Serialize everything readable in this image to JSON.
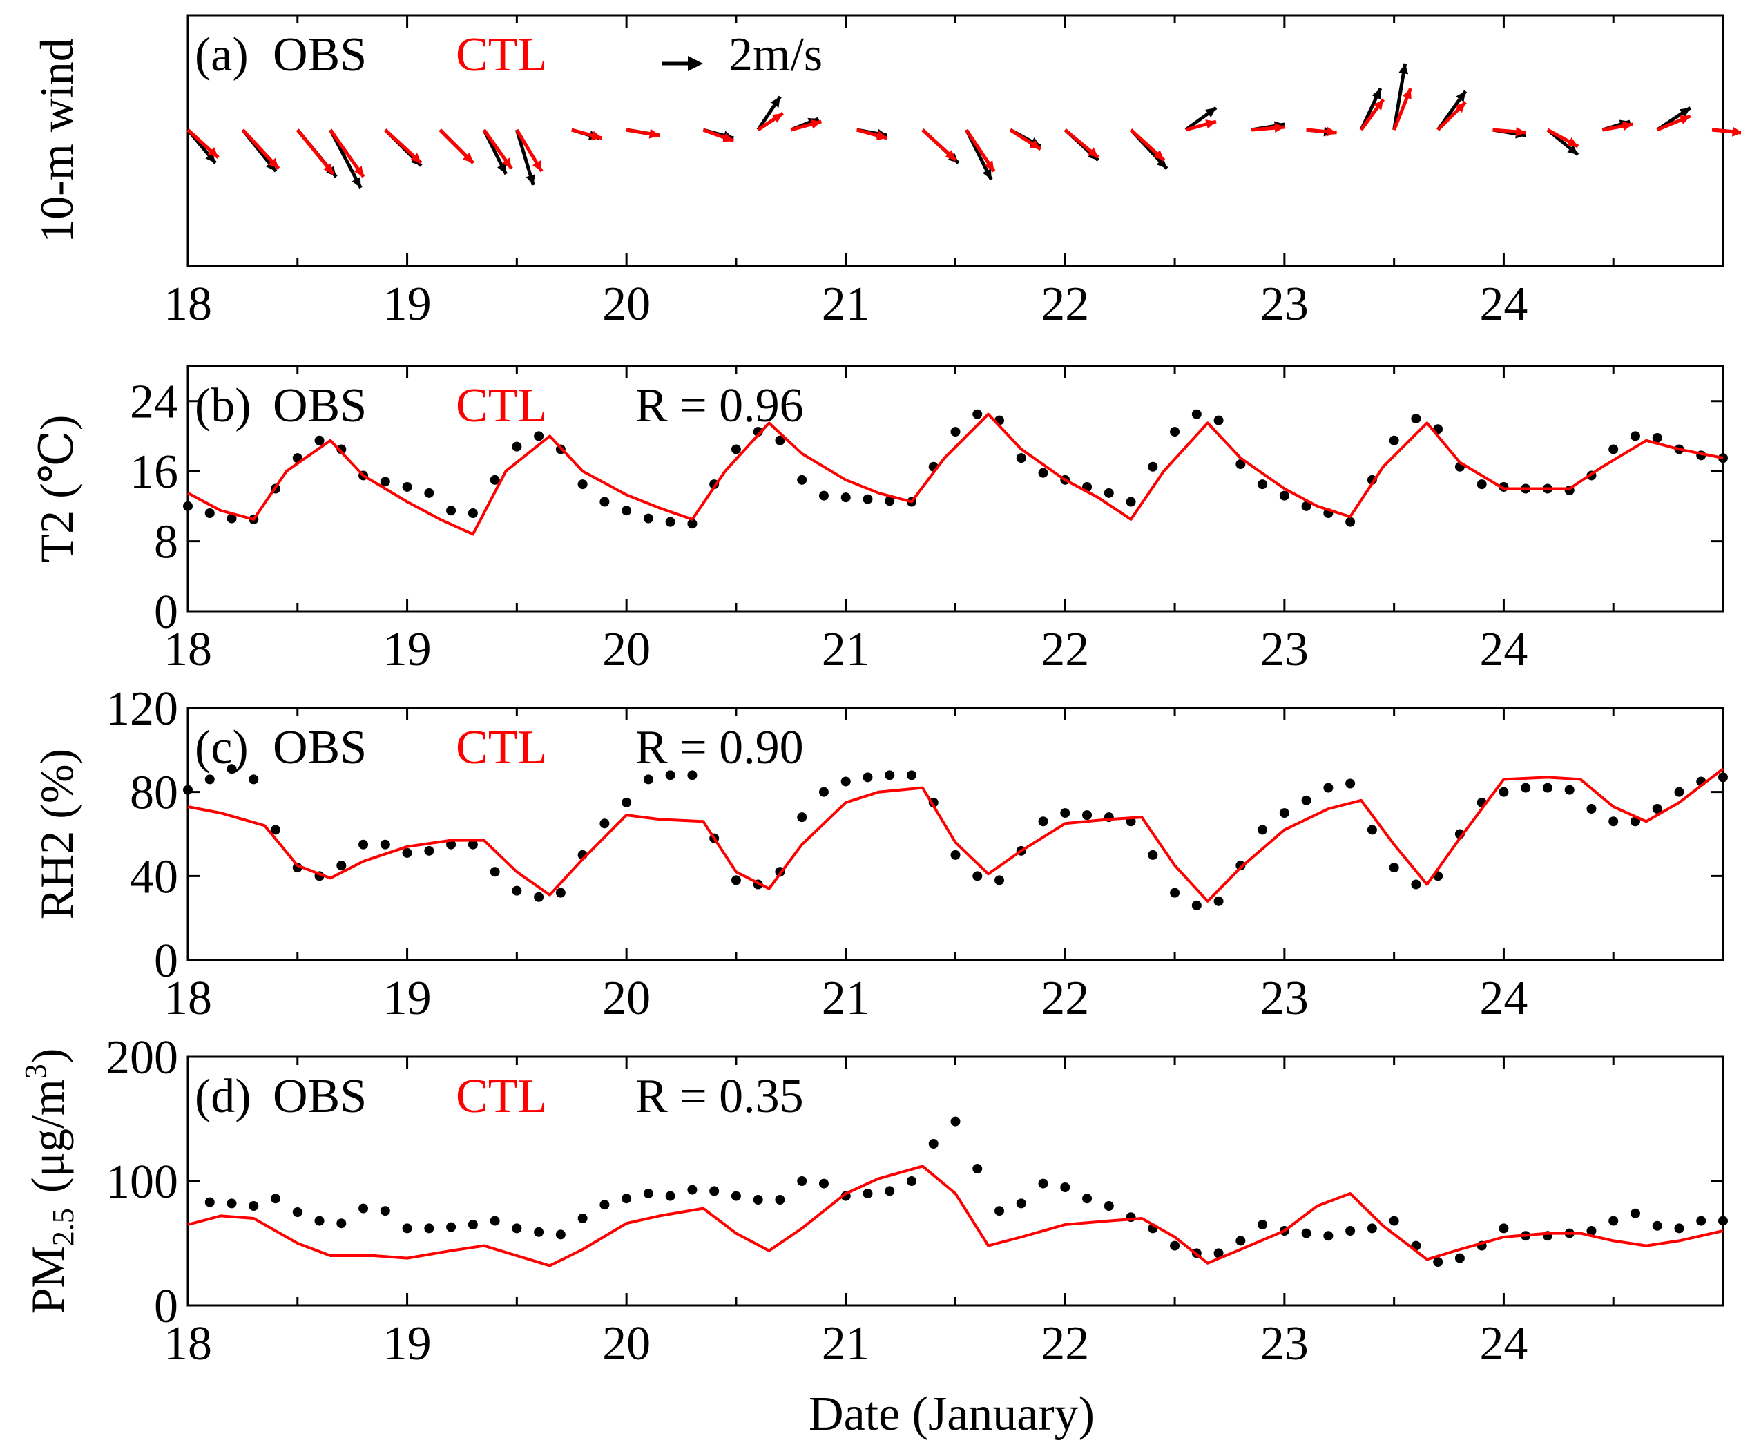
{
  "colors": {
    "obs": "#000000",
    "ctl": "#ff0000"
  },
  "legend": {
    "obs": "OBS",
    "ctl": "CTL"
  },
  "xaxis": {
    "label": "Date (January)",
    "range": [
      18,
      25
    ],
    "ticks": [
      "18",
      "19",
      "20",
      "21",
      "22",
      "23",
      "24"
    ]
  },
  "chart_data": [
    {
      "type": "quiver",
      "panel": "(a)",
      "ylabel": "10-m wind",
      "reference_arrow": "2m/s",
      "xlim": [
        18,
        25
      ],
      "obs": {
        "t": [
          18.0,
          18.25,
          18.5,
          18.65,
          18.9,
          19.15,
          19.35,
          19.5,
          19.75,
          20.0,
          20.35,
          20.6,
          20.75,
          21.05,
          21.35,
          21.55,
          21.75,
          22.0,
          22.3,
          22.55,
          22.85,
          23.1,
          23.35,
          23.5,
          23.7,
          23.95,
          24.2,
          24.45,
          24.7,
          24.95
        ],
        "u": [
          1.0,
          1.2,
          1.4,
          1.1,
          1.3,
          1.2,
          0.8,
          0.6,
          1.0,
          1.2,
          1.1,
          0.8,
          1.0,
          1.1,
          1.3,
          0.9,
          1.1,
          1.2,
          1.3,
          1.1,
          1.2,
          1.0,
          0.7,
          0.4,
          1.0,
          1.2,
          1.1,
          1.0,
          1.2,
          1.1
        ],
        "v": [
          1.2,
          1.5,
          1.7,
          2.1,
          1.3,
          1.2,
          1.6,
          2.0,
          0.3,
          0.2,
          0.3,
          -1.2,
          -0.4,
          0.2,
          1.2,
          1.8,
          0.6,
          1.1,
          1.4,
          -0.8,
          -0.2,
          0.1,
          -1.5,
          -2.4,
          -1.4,
          0.2,
          0.9,
          -0.3,
          -0.8,
          0.1
        ]
      },
      "ctl": {
        "t": [
          18.0,
          18.25,
          18.5,
          18.65,
          18.9,
          19.15,
          19.35,
          19.5,
          19.75,
          20.0,
          20.35,
          20.6,
          20.75,
          21.05,
          21.35,
          21.55,
          21.75,
          22.0,
          22.3,
          22.55,
          22.85,
          23.1,
          23.35,
          23.5,
          23.7,
          23.95,
          24.2,
          24.45,
          24.7,
          24.95
        ],
        "u": [
          1.1,
          1.3,
          1.3,
          1.2,
          1.3,
          1.2,
          1.0,
          0.9,
          1.1,
          1.2,
          1.1,
          0.9,
          1.1,
          1.1,
          1.2,
          1.0,
          1.1,
          1.2,
          1.2,
          1.1,
          1.2,
          1.1,
          0.8,
          0.6,
          1.0,
          1.2,
          1.1,
          1.1,
          1.2,
          1.1
        ],
        "v": [
          1.0,
          1.4,
          1.6,
          1.7,
          1.2,
          1.2,
          1.4,
          1.5,
          0.3,
          0.2,
          0.4,
          -0.6,
          -0.3,
          0.3,
          1.1,
          1.5,
          0.7,
          1.0,
          1.1,
          -0.3,
          -0.1,
          0.1,
          -1.1,
          -1.5,
          -1.0,
          0.1,
          0.6,
          -0.2,
          -0.5,
          0.1
        ]
      }
    },
    {
      "type": "line_scatter",
      "panel": "(b)",
      "ylabel": "T2 (℃)",
      "r_text": "R = 0.96",
      "ylim": [
        0,
        28
      ],
      "yticks": [
        0,
        8,
        16,
        24
      ],
      "obs": {
        "t": [
          18.0,
          18.1,
          18.2,
          18.3,
          18.4,
          18.5,
          18.6,
          18.7,
          18.8,
          18.9,
          19.0,
          19.1,
          19.2,
          19.3,
          19.4,
          19.5,
          19.6,
          19.7,
          19.8,
          19.9,
          20.0,
          20.1,
          20.2,
          20.3,
          20.4,
          20.5,
          20.6,
          20.7,
          20.8,
          20.9,
          21.0,
          21.1,
          21.2,
          21.3,
          21.4,
          21.5,
          21.6,
          21.7,
          21.8,
          21.9,
          22.0,
          22.1,
          22.2,
          22.3,
          22.4,
          22.5,
          22.6,
          22.7,
          22.8,
          22.9,
          23.0,
          23.1,
          23.2,
          23.3,
          23.4,
          23.5,
          23.6,
          23.7,
          23.8,
          23.9,
          24.0,
          24.1,
          24.2,
          24.3,
          24.4,
          24.5,
          24.6,
          24.7,
          24.8,
          24.9,
          25.0
        ],
        "y": [
          12,
          11.2,
          10.6,
          10.5,
          14,
          17.5,
          19.5,
          18.5,
          15.5,
          14.8,
          14.2,
          13.5,
          11.5,
          11.2,
          15,
          18.8,
          20,
          18.5,
          14.5,
          12.5,
          11.5,
          10.6,
          10.2,
          10,
          14.5,
          18.5,
          20.5,
          19.5,
          15,
          13.2,
          13,
          12.8,
          12.6,
          12.5,
          16.5,
          20.5,
          22.5,
          21.8,
          17.5,
          15.8,
          15,
          14.2,
          13.5,
          12.5,
          16.5,
          20.5,
          22.5,
          21.8,
          16.8,
          14.5,
          13.2,
          12,
          11.2,
          10.2,
          15,
          19.5,
          22,
          20.8,
          16.5,
          14.5,
          14.2,
          14,
          14,
          13.8,
          15.5,
          18.5,
          20,
          19.8,
          18.5,
          17.8,
          17.5
        ]
      },
      "ctl": {
        "t": [
          18.0,
          18.15,
          18.3,
          18.45,
          18.65,
          18.8,
          19.0,
          19.15,
          19.3,
          19.45,
          19.65,
          19.8,
          20.0,
          20.15,
          20.3,
          20.45,
          20.65,
          20.8,
          21.0,
          21.15,
          21.3,
          21.45,
          21.65,
          21.8,
          22.0,
          22.15,
          22.3,
          22.45,
          22.65,
          22.8,
          23.0,
          23.15,
          23.3,
          23.45,
          23.65,
          23.8,
          24.0,
          24.15,
          24.3,
          24.45,
          24.65,
          24.8,
          25.0
        ],
        "y": [
          13.5,
          11.5,
          10.5,
          16,
          19.5,
          15.5,
          12.5,
          10.5,
          8.8,
          16,
          20,
          16,
          13.3,
          11.8,
          10.5,
          16,
          21.5,
          18,
          15,
          13.5,
          12.5,
          17.5,
          22.5,
          18.5,
          15,
          13,
          10.5,
          16,
          21.5,
          17.5,
          14,
          12,
          10.8,
          16.5,
          21.5,
          17,
          14,
          14,
          14,
          16.5,
          19.5,
          18.5,
          17.5
        ]
      }
    },
    {
      "type": "line_scatter",
      "panel": "(c)",
      "ylabel": "RH2 (%)",
      "r_text": "R = 0.90",
      "ylim": [
        0,
        120
      ],
      "yticks": [
        0,
        40,
        80,
        120
      ],
      "obs": {
        "t": [
          18.0,
          18.1,
          18.2,
          18.3,
          18.4,
          18.5,
          18.6,
          18.7,
          18.8,
          18.9,
          19.0,
          19.1,
          19.2,
          19.3,
          19.4,
          19.5,
          19.6,
          19.7,
          19.8,
          19.9,
          20.0,
          20.1,
          20.2,
          20.3,
          20.4,
          20.5,
          20.6,
          20.7,
          20.8,
          20.9,
          21.0,
          21.1,
          21.2,
          21.3,
          21.4,
          21.5,
          21.6,
          21.7,
          21.8,
          21.9,
          22.0,
          22.1,
          22.2,
          22.3,
          22.4,
          22.5,
          22.6,
          22.7,
          22.8,
          22.9,
          23.0,
          23.1,
          23.2,
          23.3,
          23.4,
          23.5,
          23.6,
          23.7,
          23.8,
          23.9,
          24.0,
          24.1,
          24.2,
          24.3,
          24.4,
          24.5,
          24.6,
          24.7,
          24.8,
          24.9,
          25.0
        ],
        "y": [
          81,
          86,
          91,
          86,
          62,
          44,
          40,
          45,
          55,
          55,
          51,
          52,
          55,
          55,
          42,
          33,
          30,
          32,
          50,
          65,
          75,
          86,
          88,
          88,
          58,
          38,
          36,
          42,
          68,
          80,
          85,
          87,
          88,
          88,
          75,
          50,
          40,
          38,
          52,
          66,
          70,
          69,
          68,
          66,
          50,
          32,
          26,
          28,
          45,
          62,
          70,
          76,
          82,
          84,
          62,
          44,
          36,
          40,
          60,
          75,
          80,
          82,
          82,
          81,
          72,
          66,
          66,
          72,
          80,
          85,
          87
        ]
      },
      "ctl": {
        "t": [
          18.0,
          18.15,
          18.35,
          18.5,
          18.65,
          18.8,
          19.0,
          19.2,
          19.35,
          19.5,
          19.65,
          19.8,
          20.0,
          20.15,
          20.35,
          20.5,
          20.65,
          20.8,
          21.0,
          21.15,
          21.35,
          21.5,
          21.65,
          21.8,
          22.0,
          22.2,
          22.35,
          22.5,
          22.65,
          22.8,
          23.0,
          23.2,
          23.35,
          23.5,
          23.65,
          23.8,
          24.0,
          24.2,
          24.35,
          24.5,
          24.65,
          24.8,
          25.0
        ],
        "y": [
          73,
          70,
          64,
          45,
          39,
          47,
          54,
          57,
          57,
          42,
          31,
          48,
          69,
          67,
          66,
          42,
          34,
          55,
          75,
          80,
          82,
          56,
          41,
          52,
          65,
          67,
          68,
          45,
          28,
          44,
          62,
          72,
          76,
          55,
          36,
          58,
          86,
          87,
          86,
          73,
          66,
          75,
          91
        ]
      }
    },
    {
      "type": "line_scatter",
      "panel": "(d)",
      "ylabel": "PM2.5 (μg/m3)",
      "ylabel_parts": {
        "main": "PM",
        "sub": "2.5",
        "unit_open": "(μg/m",
        "sup": "3",
        "unit_close": ")"
      },
      "r_text": "R = 0.35",
      "ylim": [
        0,
        200
      ],
      "yticks": [
        0,
        100,
        200
      ],
      "obs": {
        "t": [
          18.1,
          18.2,
          18.3,
          18.4,
          18.5,
          18.6,
          18.7,
          18.8,
          18.9,
          19.0,
          19.1,
          19.2,
          19.3,
          19.4,
          19.5,
          19.6,
          19.7,
          19.8,
          19.9,
          20.0,
          20.1,
          20.2,
          20.3,
          20.4,
          20.5,
          20.6,
          20.7,
          20.8,
          20.9,
          21.0,
          21.1,
          21.2,
          21.3,
          21.4,
          21.5,
          21.6,
          21.7,
          21.8,
          21.9,
          22.0,
          22.1,
          22.2,
          22.3,
          22.4,
          22.5,
          22.6,
          22.7,
          22.8,
          22.9,
          23.0,
          23.1,
          23.2,
          23.3,
          23.4,
          23.5,
          23.6,
          23.7,
          23.8,
          23.9,
          24.0,
          24.1,
          24.2,
          24.3,
          24.4,
          24.5,
          24.6,
          24.7,
          24.8,
          24.9,
          25.0
        ],
        "y": [
          83,
          82,
          80,
          86,
          75,
          68,
          66,
          78,
          76,
          62,
          62,
          63,
          65,
          68,
          62,
          59,
          57,
          70,
          81,
          86,
          90,
          88,
          93,
          92,
          88,
          85,
          85,
          100,
          98,
          88,
          90,
          92,
          100,
          130,
          148,
          110,
          76,
          82,
          98,
          95,
          86,
          80,
          71,
          62,
          48,
          42,
          42,
          52,
          65,
          60,
          58,
          56,
          60,
          62,
          68,
          48,
          35,
          38,
          48,
          62,
          56,
          56,
          58,
          60,
          68,
          74,
          64,
          62,
          68,
          68
        ]
      },
      "ctl": {
        "t": [
          18.0,
          18.15,
          18.3,
          18.5,
          18.65,
          18.85,
          19.0,
          19.2,
          19.35,
          19.5,
          19.65,
          19.8,
          20.0,
          20.15,
          20.35,
          20.5,
          20.65,
          20.8,
          21.0,
          21.15,
          21.35,
          21.5,
          21.65,
          21.8,
          22.0,
          22.2,
          22.35,
          22.5,
          22.65,
          22.8,
          23.0,
          23.15,
          23.3,
          23.45,
          23.65,
          23.8,
          24.0,
          24.2,
          24.35,
          24.5,
          24.65,
          24.8,
          25.0
        ],
        "y": [
          65,
          72,
          70,
          50,
          40,
          40,
          38,
          44,
          48,
          40,
          32,
          45,
          66,
          72,
          78,
          58,
          44,
          62,
          90,
          102,
          112,
          90,
          48,
          55,
          65,
          68,
          70,
          55,
          34,
          45,
          60,
          80,
          90,
          64,
          37,
          45,
          55,
          58,
          58,
          52,
          48,
          52,
          60
        ]
      }
    }
  ]
}
